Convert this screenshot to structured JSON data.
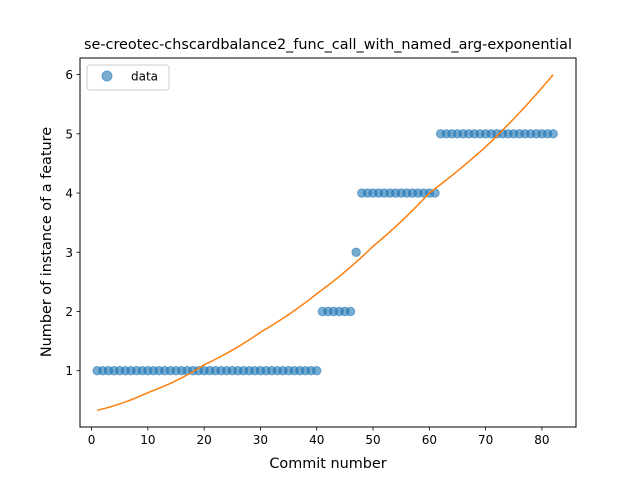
{
  "chart_data": {
    "type": "scatter",
    "title": "se-creotec-chscardbalance2_func_call_with_named_arg-exponential",
    "xlabel": "Commit number",
    "ylabel": "Number of instance of a feature",
    "xlim": [
      -2.05,
      86.05
    ],
    "ylim": [
      0.05,
      6.28
    ],
    "xticks": [
      0,
      10,
      20,
      30,
      40,
      50,
      60,
      70,
      80
    ],
    "yticks": [
      1,
      2,
      3,
      4,
      5,
      6
    ],
    "grid": false,
    "legend": {
      "location": "upper-left",
      "entries": [
        "data"
      ]
    },
    "colors": {
      "data": "#1f77b4",
      "fit": "#ff7f0e"
    },
    "series": [
      {
        "name": "data",
        "kind": "scatter",
        "x": [
          1,
          2,
          3,
          4,
          5,
          6,
          7,
          8,
          9,
          10,
          11,
          12,
          13,
          14,
          15,
          16,
          17,
          18,
          19,
          20,
          21,
          22,
          23,
          24,
          25,
          26,
          27,
          28,
          29,
          30,
          31,
          32,
          33,
          34,
          35,
          36,
          37,
          38,
          39,
          40,
          41,
          42,
          43,
          44,
          45,
          46,
          47,
          48,
          49,
          50,
          51,
          52,
          53,
          54,
          55,
          56,
          57,
          58,
          59,
          60,
          61,
          62,
          63,
          64,
          65,
          66,
          67,
          68,
          69,
          70,
          71,
          72,
          73,
          74,
          75,
          76,
          77,
          78,
          79,
          80,
          81,
          82
        ],
        "y": [
          1,
          1,
          1,
          1,
          1,
          1,
          1,
          1,
          1,
          1,
          1,
          1,
          1,
          1,
          1,
          1,
          1,
          1,
          1,
          1,
          1,
          1,
          1,
          1,
          1,
          1,
          1,
          1,
          1,
          1,
          1,
          1,
          1,
          1,
          1,
          1,
          1,
          1,
          1,
          1,
          2,
          2,
          2,
          2,
          2,
          2,
          3,
          4,
          4,
          4,
          4,
          4,
          4,
          4,
          4,
          4,
          4,
          4,
          4,
          4,
          4,
          5,
          5,
          5,
          5,
          5,
          5,
          5,
          5,
          5,
          5,
          5,
          5,
          5,
          5,
          5,
          5,
          5,
          5,
          5,
          5,
          5
        ]
      },
      {
        "kind": "line",
        "x": [
          1,
          10,
          20,
          30,
          40,
          50,
          60,
          70,
          82
        ],
        "y": [
          0.33,
          0.63,
          1.1,
          1.65,
          2.3,
          3.1,
          4.0,
          4.78,
          6.0
        ]
      }
    ]
  }
}
